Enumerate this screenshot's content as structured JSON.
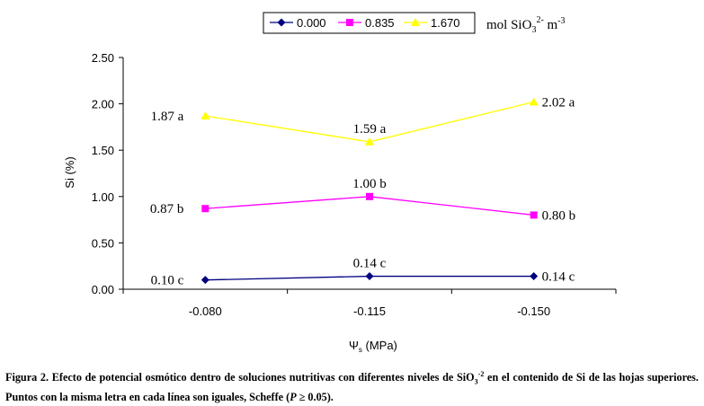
{
  "chart_data": {
    "type": "line",
    "categories": [
      "-0.080",
      "-0.115",
      "-0.150"
    ],
    "series": [
      {
        "name": "0.000",
        "color": "#000080",
        "marker": "diamond",
        "values": [
          0.1,
          0.14,
          0.14
        ],
        "labels": [
          "0.10 c",
          "0.14 c",
          "0.14 c"
        ]
      },
      {
        "name": "0.835",
        "color": "#ff00ff",
        "marker": "square",
        "values": [
          0.87,
          1.0,
          0.8
        ],
        "labels": [
          "0.87 b",
          "1.00 b",
          "0.80 b"
        ]
      },
      {
        "name": "1.670",
        "color": "#ffff00",
        "marker": "triangle",
        "values": [
          1.87,
          1.59,
          2.02
        ],
        "labels": [
          "1.87 a",
          "1.59 a",
          "2.02 a"
        ]
      }
    ],
    "yticks": [
      "0.00",
      "0.50",
      "1.00",
      "1.50",
      "2.00",
      "2.50"
    ],
    "ylim": [
      0,
      2.5
    ],
    "ylabel": "Si (%)",
    "xlabel": {
      "symbol": "Ψ",
      "sub": "s",
      "unit": " (MPa)"
    },
    "legend_unit": {
      "text": "mol SiO",
      "sub": "3",
      "sup": "2-",
      "tail": " m",
      "tail_sup": "-3"
    },
    "legend_position": "top-right"
  },
  "caption": {
    "part1": "Figura 2. Efecto de potencial osmótico dentro de soluciones nutritivas con diferentes niveles de SiO",
    "sub": "3",
    "sup": "-2",
    "part2": " en el contenido de Si de las hojas superiores. Puntos con la misma letra en cada línea son iguales,  Scheffe (",
    "p": "P",
    "part3": "  ≥ 0.05)."
  }
}
